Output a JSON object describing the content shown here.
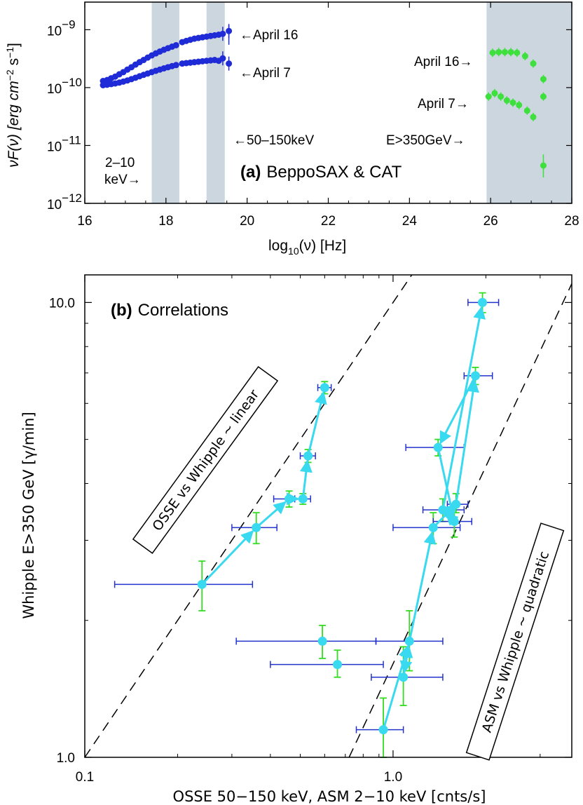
{
  "colors": {
    "april16": "#1f2bd6",
    "april7": "#1f2bd6",
    "tev": "#3ee03e",
    "band": "#ccd6df",
    "cyan": "#39d9f0",
    "xerr": "#2233cc",
    "yerr": "#33dd22"
  },
  "chart_data": [
    {
      "type": "scatter",
      "panel_label": "(a)",
      "title": "BeppoSAX & CAT",
      "xlabel": "log",
      "xlabel_sub": "10",
      "xlabel_rest": "(ν) [Hz]",
      "ylabel": "νF(ν) [erg cm",
      "ylabel_sup1": "−2",
      "ylabel_mid": " s",
      "ylabel_sup2": "−1",
      "ylabel_end": "]",
      "xlim": [
        16,
        28
      ],
      "ylog": true,
      "ylim": [
        1e-12,
        3e-09
      ],
      "xticks": [
        "16",
        "18",
        "20",
        "22",
        "24",
        "26",
        "28"
      ],
      "ytick_base": [
        "10",
        "10",
        "10",
        "10"
      ],
      "ytick_exp": [
        "−9",
        "−10",
        "−11",
        "−12"
      ],
      "bands": [
        [
          17.65,
          18.33
        ],
        [
          19.0,
          19.45
        ],
        [
          25.9,
          28
        ]
      ],
      "annotations": {
        "xray_april16": "←April 16",
        "xray_april7": "←April 7",
        "tev_april16": "April 16→",
        "tev_april7": "April 7→",
        "osse": "←50–150keV",
        "cat": "E>350GeV→",
        "asm_line1": "2–10",
        "asm_line2": "keV→"
      },
      "series": [
        {
          "name": "April 16",
          "x": [
            16.45,
            16.55,
            16.65,
            16.75,
            16.85,
            16.95,
            17.05,
            17.15,
            17.25,
            17.35,
            17.45,
            17.55,
            17.65,
            17.75,
            17.85,
            17.95,
            18.05,
            18.15,
            18.25,
            18.4,
            18.5,
            18.6,
            18.7,
            18.8,
            18.9,
            19.0,
            19.1,
            19.2,
            19.3,
            19.4,
            19.55
          ],
          "y": [
            1.3e-10,
            1.35e-10,
            1.45e-10,
            1.55e-10,
            1.7e-10,
            1.85e-10,
            2.05e-10,
            2.25e-10,
            2.5e-10,
            2.75e-10,
            3e-10,
            3.3e-10,
            3.6e-10,
            3.9e-10,
            4.2e-10,
            4.5e-10,
            4.8e-10,
            5.1e-10,
            5.4e-10,
            6.1e-10,
            6.4e-10,
            6.7e-10,
            7e-10,
            7.2e-10,
            7.4e-10,
            7.6e-10,
            7.8e-10,
            8e-10,
            8.2e-10,
            8.5e-10,
            9.5e-10
          ]
        },
        {
          "name": "April 7",
          "x": [
            16.45,
            16.55,
            16.65,
            16.75,
            16.85,
            16.95,
            17.05,
            17.15,
            17.25,
            17.35,
            17.45,
            17.55,
            17.65,
            17.75,
            17.85,
            17.95,
            18.05,
            18.15,
            18.25,
            18.4,
            18.5,
            18.6,
            18.7,
            18.8,
            18.9,
            19.0,
            19.1,
            19.2,
            19.3,
            19.4,
            19.55
          ],
          "y": [
            1.1e-10,
            1.12e-10,
            1.15e-10,
            1.18e-10,
            1.22e-10,
            1.27e-10,
            1.33e-10,
            1.4e-10,
            1.48e-10,
            1.57e-10,
            1.66e-10,
            1.75e-10,
            1.85e-10,
            1.95e-10,
            2.05e-10,
            2.15e-10,
            2.25e-10,
            2.35e-10,
            2.45e-10,
            2.6e-10,
            2.65e-10,
            2.7e-10,
            2.75e-10,
            2.8e-10,
            2.85e-10,
            2.9e-10,
            2.95e-10,
            3e-10,
            2.9e-10,
            3.2e-10,
            2.6e-10
          ]
        },
        {
          "name": "April 16 (TeV)",
          "x": [
            26.05,
            26.2,
            26.35,
            26.5,
            26.65,
            26.85,
            27.05,
            27.3
          ],
          "y": [
            4e-10,
            4.1e-10,
            4.1e-10,
            4.1e-10,
            4e-10,
            3.5e-10,
            2.6e-10,
            1.4e-10
          ]
        },
        {
          "name": "April 7 (TeV)",
          "x": [
            25.95,
            26.1,
            26.25,
            26.4,
            26.55,
            26.7,
            26.9,
            27.05,
            27.3
          ],
          "y": [
            7e-11,
            8e-11,
            7e-11,
            6e-11,
            5.5e-11,
            5e-11,
            4e-11,
            3.1e-11,
            7e-11
          ]
        },
        {
          "name": "E>350GeV point",
          "x": [
            27.3
          ],
          "y": [
            4.5e-12
          ]
        }
      ]
    },
    {
      "type": "scatter",
      "panel_label": "(b)",
      "title": "Correlations",
      "xlabel": "OSSE 50−150 keV, ASM 2−10 keV  [cnts/s]",
      "ylabel": "Whipple E>350 GeV [γ/min]",
      "xlog": true,
      "ylog": true,
      "xlim": [
        0.1,
        3.8
      ],
      "ylim": [
        1.0,
        11.5
      ],
      "xticks": [
        "0.1",
        "1.0"
      ],
      "yticks": [
        "1.0",
        "10.0"
      ],
      "lines": [
        {
          "label": "OSSE vs Whipple ~ linear"
        },
        {
          "label": "ASM vs Whipple ~ quadratic"
        }
      ],
      "osse_points": [
        {
          "x": 0.24,
          "y": 2.4,
          "xerr": [
            0.125,
            0.35
          ],
          "yerr": [
            2.1,
            2.7
          ]
        },
        {
          "x": 0.36,
          "y": 3.2,
          "xerr": [
            0.3,
            0.42
          ],
          "yerr": [
            2.95,
            3.45
          ]
        },
        {
          "x": 0.46,
          "y": 3.7,
          "xerr": [
            0.41,
            0.5
          ],
          "yerr": [
            3.55,
            3.85
          ]
        },
        {
          "x": 0.53,
          "y": 4.6,
          "xerr": [
            0.5,
            0.56
          ],
          "yerr": [
            4.45,
            4.75
          ]
        },
        {
          "x": 0.51,
          "y": 3.7,
          "xerr": [
            0.48,
            0.54
          ],
          "yerr": [
            3.6,
            3.8
          ]
        },
        {
          "x": 0.6,
          "y": 6.5,
          "xerr": [
            0.57,
            0.63
          ],
          "yerr": [
            6.3,
            6.7
          ]
        },
        {
          "x": 0.59,
          "y": 1.8,
          "xerr": [
            0.31,
            0.88
          ],
          "yerr": [
            1.65,
            1.95
          ]
        },
        {
          "x": 0.66,
          "y": 1.6,
          "xerr": [
            0.4,
            0.93
          ],
          "yerr": [
            1.5,
            1.72
          ]
        }
      ],
      "asm_points": [
        {
          "x": 0.93,
          "y": 1.15,
          "xerr": [
            0.76,
            1.08
          ],
          "yerr": [
            1.0,
            1.35
          ]
        },
        {
          "x": 1.08,
          "y": 1.5,
          "xerr": [
            0.85,
            1.45
          ],
          "yerr": [
            1.3,
            1.75
          ]
        },
        {
          "x": 1.13,
          "y": 1.8,
          "xerr": [
            0.88,
            1.45
          ],
          "yerr": [
            1.55,
            2.1
          ]
        },
        {
          "x": 1.35,
          "y": 3.2,
          "xerr": [
            1.0,
            1.65
          ],
          "yerr": [
            2.95,
            3.45
          ]
        },
        {
          "x": 1.45,
          "y": 3.5,
          "xerr": [
            1.25,
            1.7
          ],
          "yerr": [
            3.3,
            3.7
          ]
        },
        {
          "x": 1.6,
          "y": 3.6,
          "xerr": [
            1.5,
            1.75
          ],
          "yerr": [
            3.45,
            3.8
          ]
        },
        {
          "x": 1.58,
          "y": 3.3,
          "xerr": [
            1.35,
            1.8
          ],
          "yerr": [
            3.05,
            3.55
          ]
        },
        {
          "x": 1.4,
          "y": 4.8,
          "xerr": [
            1.1,
            1.7
          ],
          "yerr": [
            4.6,
            5.0
          ]
        },
        {
          "x": 1.85,
          "y": 6.9,
          "xerr": [
            1.7,
            2.1
          ],
          "yerr": [
            6.6,
            7.2
          ]
        },
        {
          "x": 1.95,
          "y": 10.0,
          "xerr": [
            1.75,
            2.2
          ],
          "yerr": [
            9.5,
            10.5
          ]
        }
      ],
      "osse_path": [
        0,
        1,
        2,
        4,
        3,
        5
      ],
      "asm_path": [
        0,
        2,
        1,
        2,
        3,
        5,
        8,
        7,
        6,
        4,
        9
      ]
    }
  ]
}
